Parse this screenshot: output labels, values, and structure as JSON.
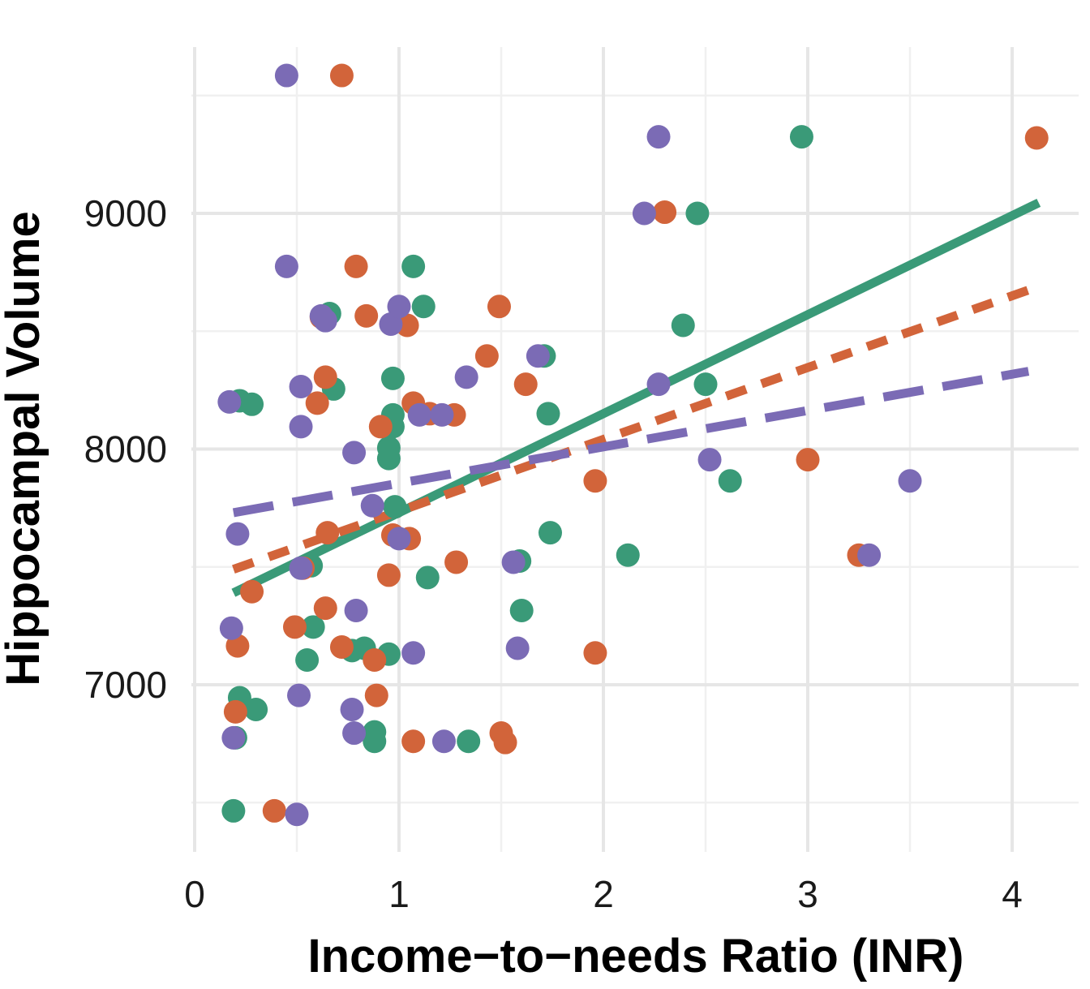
{
  "chart_data": {
    "type": "scatter",
    "xlabel": "Income−to−needs Ratio (INR)",
    "ylabel": "Hippocampal Volume",
    "xlim": [
      0,
      4.3
    ],
    "ylim": [
      6430,
      9630
    ],
    "x_ticks": [
      0,
      1,
      2,
      3,
      4
    ],
    "x_tick_labels": [
      "0",
      "1",
      "2",
      "3",
      "4"
    ],
    "y_ticks": [
      7000,
      8000,
      9000
    ],
    "y_tick_labels": [
      "7000",
      "8000",
      "9000"
    ],
    "grid": true,
    "legend": "none",
    "series": [
      {
        "color": "#3a9a78",
        "points": [
          [
            0.19,
            6465
          ],
          [
            0.2,
            6775
          ],
          [
            0.22,
            6945
          ],
          [
            0.3,
            6895
          ],
          [
            0.22,
            8205
          ],
          [
            0.28,
            8190
          ],
          [
            0.55,
            7105
          ],
          [
            0.58,
            7245
          ],
          [
            0.57,
            7505
          ],
          [
            0.68,
            8255
          ],
          [
            0.66,
            8575
          ],
          [
            0.77,
            7145
          ],
          [
            0.83,
            7155
          ],
          [
            0.88,
            6800
          ],
          [
            0.88,
            6760
          ],
          [
            0.95,
            7130
          ],
          [
            0.95,
            7960
          ],
          [
            0.95,
            8005
          ],
          [
            0.97,
            8145
          ],
          [
            0.97,
            8300
          ],
          [
            0.97,
            8095
          ],
          [
            0.98,
            7755
          ],
          [
            1.07,
            8775
          ],
          [
            1.12,
            8605
          ],
          [
            1.14,
            7455
          ],
          [
            1.34,
            6760
          ],
          [
            1.6,
            7315
          ],
          [
            1.59,
            7525
          ],
          [
            1.71,
            8395
          ],
          [
            1.74,
            7645
          ],
          [
            1.73,
            8150
          ],
          [
            2.12,
            7550
          ],
          [
            2.39,
            8525
          ],
          [
            2.46,
            9000
          ],
          [
            2.5,
            8275
          ],
          [
            2.62,
            7865
          ],
          [
            2.97,
            9325
          ]
        ]
      },
      {
        "color": "#d2643a",
        "points": [
          [
            0.2,
            6885
          ],
          [
            0.21,
            7165
          ],
          [
            0.28,
            7395
          ],
          [
            0.39,
            6465
          ],
          [
            0.49,
            7245
          ],
          [
            0.53,
            7495
          ],
          [
            0.6,
            8195
          ],
          [
            0.62,
            8560
          ],
          [
            0.64,
            8305
          ],
          [
            0.65,
            7645
          ],
          [
            0.64,
            7325
          ],
          [
            0.72,
            7160
          ],
          [
            0.72,
            9585
          ],
          [
            0.79,
            8775
          ],
          [
            0.84,
            8565
          ],
          [
            0.88,
            7105
          ],
          [
            0.89,
            6955
          ],
          [
            0.91,
            8095
          ],
          [
            0.95,
            7465
          ],
          [
            0.97,
            7635
          ],
          [
            1.04,
            8525
          ],
          [
            1.05,
            7620
          ],
          [
            1.07,
            8195
          ],
          [
            1.15,
            8150
          ],
          [
            1.27,
            8145
          ],
          [
            1.28,
            7520
          ],
          [
            1.07,
            6760
          ],
          [
            1.43,
            8395
          ],
          [
            1.5,
            6795
          ],
          [
            1.52,
            6755
          ],
          [
            1.49,
            8605
          ],
          [
            1.62,
            8275
          ],
          [
            1.96,
            7865
          ],
          [
            1.96,
            7135
          ],
          [
            2.3,
            9005
          ],
          [
            3.0,
            7955
          ],
          [
            3.25,
            7550
          ],
          [
            4.12,
            9320
          ]
        ]
      },
      {
        "color": "#7b6bb5",
        "points": [
          [
            0.17,
            8200
          ],
          [
            0.18,
            7240
          ],
          [
            0.19,
            6775
          ],
          [
            0.21,
            7640
          ],
          [
            0.45,
            9585
          ],
          [
            0.45,
            8775
          ],
          [
            0.5,
            6450
          ],
          [
            0.51,
            6955
          ],
          [
            0.52,
            8095
          ],
          [
            0.52,
            8265
          ],
          [
            0.52,
            7495
          ],
          [
            0.62,
            8565
          ],
          [
            0.64,
            8545
          ],
          [
            0.77,
            6895
          ],
          [
            0.78,
            6795
          ],
          [
            0.78,
            7985
          ],
          [
            0.79,
            7315
          ],
          [
            0.87,
            7760
          ],
          [
            0.96,
            8530
          ],
          [
            1.0,
            8605
          ],
          [
            1.0,
            7620
          ],
          [
            1.07,
            7135
          ],
          [
            1.1,
            8145
          ],
          [
            1.21,
            8145
          ],
          [
            1.22,
            6760
          ],
          [
            1.33,
            8305
          ],
          [
            1.56,
            7520
          ],
          [
            1.58,
            7155
          ],
          [
            1.68,
            8395
          ],
          [
            2.2,
            9000
          ],
          [
            2.27,
            9325
          ],
          [
            2.27,
            8275
          ],
          [
            2.52,
            7955
          ],
          [
            3.3,
            7550
          ],
          [
            3.5,
            7865
          ]
        ]
      }
    ],
    "fit_lines": [
      {
        "color": "#3a9a78",
        "style": "solid",
        "x": [
          0.19,
          4.13
        ],
        "y": [
          7390,
          9045
        ]
      },
      {
        "color": "#d2643a",
        "style": "dashed-short",
        "x": [
          0.19,
          4.13
        ],
        "y": [
          7490,
          8690
        ]
      },
      {
        "color": "#7b6bb5",
        "style": "dashed-long",
        "x": [
          0.19,
          4.08
        ],
        "y": [
          7730,
          8330
        ]
      }
    ]
  }
}
